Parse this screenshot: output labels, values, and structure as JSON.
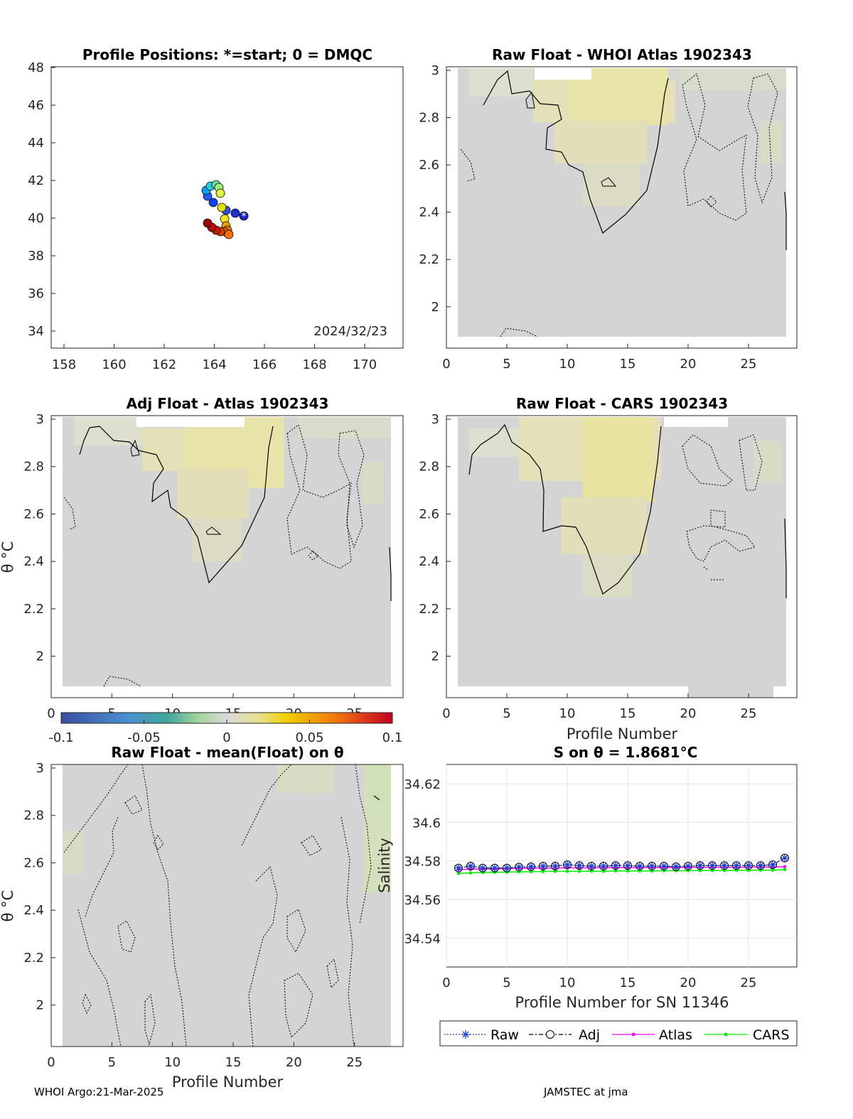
{
  "footer": {
    "left": "WHOI Argo:21-Mar-2025",
    "right": "JAMSTEC at jma"
  },
  "map": {
    "title": "Profile Positions: *=start; 0 = DMQC",
    "date_text": "2024/32/23",
    "xticks": [
      "158",
      "160",
      "162",
      "164",
      "166",
      "168",
      "170"
    ],
    "yticks": [
      "48",
      "46",
      "44",
      "42",
      "40",
      "38",
      "36",
      "34"
    ]
  },
  "contour_panels": [
    {
      "key": "p2",
      "title": "Raw Float - WHOI Atlas  1902343",
      "xlabel": "",
      "ylabel": ""
    },
    {
      "key": "p3",
      "title": "Adj Float - Atlas  1902343",
      "xlabel": "",
      "ylabel": "θ °C"
    },
    {
      "key": "p4",
      "title": "Raw Float - CARS  1902343",
      "xlabel": "Profile Number",
      "ylabel": ""
    },
    {
      "key": "p5",
      "title": "Raw Float - mean(Float) on θ",
      "xlabel": "Profile Number",
      "ylabel": "θ °C"
    }
  ],
  "contour_axes": {
    "xticks": [
      "0",
      "5",
      "10",
      "15",
      "20",
      "25"
    ],
    "yticks": [
      "3",
      "2.8",
      "2.6",
      "2.4",
      "2.2",
      "2"
    ]
  },
  "colorbar": {
    "ticks": [
      "-0.1",
      "-0.05",
      "0",
      "0.05",
      "0.1"
    ]
  },
  "colors": {
    "raw": "#1f3fd0",
    "adj": "#000000",
    "atlas": "#ff00ff",
    "cars": "#00ee00"
  },
  "chart_data": {
    "type": "line",
    "title": "S on θ = 1.8681°C",
    "xlabel": "Profile Number for SN 11346",
    "ylabel": "Salinity",
    "xlim": [
      0,
      29
    ],
    "ylim": [
      34.525,
      34.63
    ],
    "xticks": [
      "0",
      "5",
      "10",
      "15",
      "20",
      "25"
    ],
    "yticks": [
      "34.62",
      "34.6",
      "34.58",
      "34.56",
      "34.54"
    ],
    "grid": true,
    "legend_position": "bottom",
    "x": [
      1,
      2,
      3,
      4,
      5,
      6,
      7,
      8,
      9,
      10,
      11,
      12,
      13,
      14,
      15,
      16,
      17,
      18,
      19,
      20,
      21,
      22,
      23,
      24,
      25,
      26,
      27,
      28
    ],
    "series": [
      {
        "name": "Raw",
        "values": [
          34.5763,
          34.5773,
          34.5763,
          34.5763,
          34.5763,
          34.5768,
          34.577,
          34.5773,
          34.5773,
          34.578,
          34.5776,
          34.5773,
          34.5773,
          34.5776,
          34.5776,
          34.5773,
          34.5773,
          34.5773,
          34.577,
          34.5773,
          34.5776,
          34.5776,
          34.5776,
          34.5776,
          34.5776,
          34.5776,
          34.578,
          34.5815
        ]
      },
      {
        "name": "Adj",
        "values": [
          34.5763,
          34.5773,
          34.5763,
          34.5763,
          34.5763,
          34.5768,
          34.577,
          34.5773,
          34.5773,
          34.578,
          34.5776,
          34.5773,
          34.5773,
          34.5776,
          34.5776,
          34.5773,
          34.5773,
          34.5773,
          34.577,
          34.5773,
          34.5776,
          34.5776,
          34.5776,
          34.5776,
          34.5776,
          34.5776,
          34.578,
          34.5815
        ]
      },
      {
        "name": "Atlas",
        "values": [
          34.5755,
          34.5757,
          34.5758,
          34.5759,
          34.576,
          34.5761,
          34.5762,
          34.5763,
          34.5763,
          34.5764,
          34.5764,
          34.5765,
          34.5765,
          34.5765,
          34.5766,
          34.5766,
          34.5766,
          34.5766,
          34.5766,
          34.5767,
          34.5767,
          34.5767,
          34.5767,
          34.5767,
          34.5768,
          34.5768,
          34.5768,
          34.577
        ]
      },
      {
        "name": "CARS",
        "values": [
          34.5735,
          34.5738,
          34.574,
          34.5741,
          34.5742,
          34.5743,
          34.5744,
          34.5745,
          34.5746,
          34.5746,
          34.5746,
          34.5747,
          34.5746,
          34.5748,
          34.5748,
          34.5748,
          34.5748,
          34.5749,
          34.5749,
          34.5749,
          34.575,
          34.575,
          34.575,
          34.5751,
          34.5751,
          34.5752,
          34.5752,
          34.5755
        ]
      }
    ],
    "legend": [
      "Raw",
      "Adj",
      "Atlas",
      "CARS"
    ]
  }
}
